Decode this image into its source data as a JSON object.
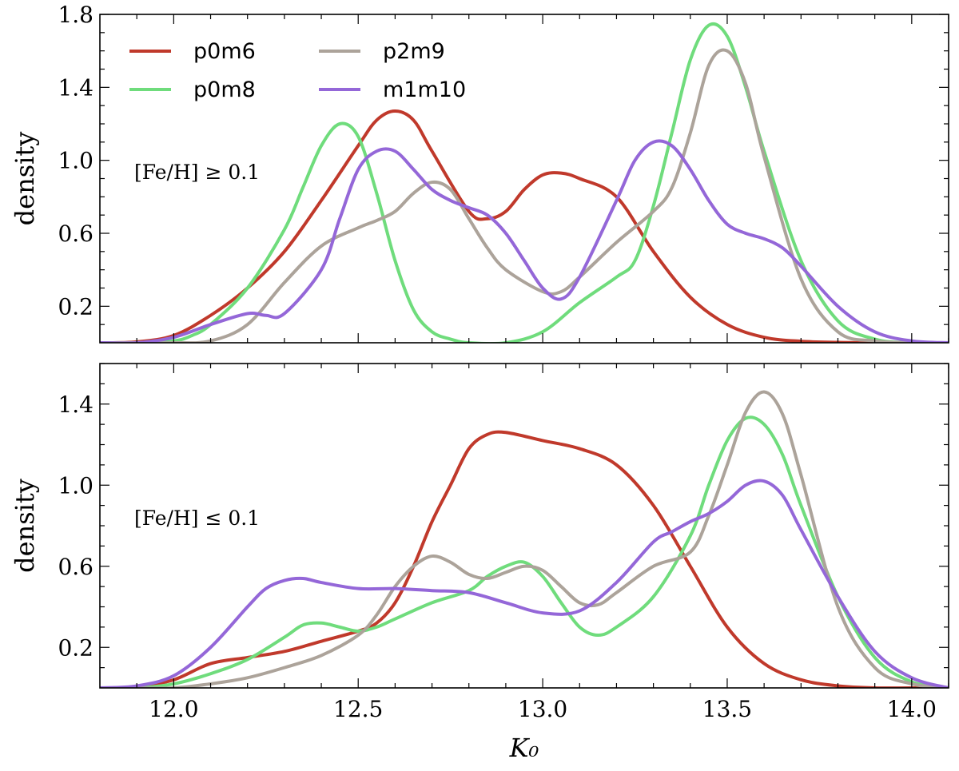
{
  "chart_data": [
    {
      "type": "line",
      "panel": "top",
      "annotation": "[Fe/H] ≥ 0.1",
      "ylabel": "density",
      "xlabel": "",
      "xlim": [
        11.8,
        14.1
      ],
      "ylim": [
        0.0,
        1.8
      ],
      "yticks": [
        0.2,
        0.6,
        1.0,
        1.4,
        1.8
      ],
      "ytick_labels": [
        "0.2",
        "0.6",
        "1.0",
        "1.4",
        "1.8"
      ],
      "xticks": [
        12.0,
        12.5,
        13.0,
        13.5,
        14.0
      ],
      "xtick_labels": [],
      "legend": {
        "placement": "top-left",
        "columns": 2
      },
      "series": [
        {
          "name": "p0m6",
          "color": "#c0392b",
          "x": [
            11.8,
            11.9,
            12.0,
            12.1,
            12.2,
            12.3,
            12.4,
            12.5,
            12.55,
            12.6,
            12.65,
            12.7,
            12.8,
            12.85,
            12.9,
            12.95,
            13.0,
            13.05,
            13.1,
            13.2,
            13.3,
            13.4,
            13.5,
            13.6,
            13.7,
            13.8,
            13.9,
            14.0,
            14.1
          ],
          "y": [
            0.0,
            0.005,
            0.04,
            0.15,
            0.3,
            0.5,
            0.78,
            1.08,
            1.22,
            1.27,
            1.22,
            1.05,
            0.72,
            0.68,
            0.72,
            0.84,
            0.92,
            0.93,
            0.9,
            0.8,
            0.5,
            0.25,
            0.1,
            0.03,
            0.008,
            0.002,
            0.0,
            0.0,
            0.0
          ]
        },
        {
          "name": "p0m8",
          "color": "#6fdc7c",
          "x": [
            11.8,
            11.9,
            12.0,
            12.05,
            12.1,
            12.2,
            12.3,
            12.35,
            12.4,
            12.45,
            12.5,
            12.55,
            12.6,
            12.65,
            12.7,
            12.75,
            12.8,
            12.9,
            13.0,
            13.1,
            13.2,
            13.25,
            13.3,
            13.35,
            13.4,
            13.45,
            13.5,
            13.55,
            13.6,
            13.7,
            13.8,
            13.9,
            14.0,
            14.1
          ],
          "y": [
            0.0,
            0.0,
            0.01,
            0.04,
            0.1,
            0.3,
            0.62,
            0.85,
            1.08,
            1.2,
            1.13,
            0.82,
            0.45,
            0.18,
            0.06,
            0.02,
            0.0,
            0.0,
            0.06,
            0.22,
            0.36,
            0.45,
            0.75,
            1.15,
            1.55,
            1.74,
            1.68,
            1.4,
            1.05,
            0.45,
            0.12,
            0.02,
            0.0,
            0.0
          ]
        },
        {
          "name": "p2m9",
          "color": "#aca39a",
          "x": [
            11.8,
            11.9,
            12.0,
            12.1,
            12.2,
            12.3,
            12.4,
            12.5,
            12.55,
            12.6,
            12.65,
            12.7,
            12.75,
            12.8,
            12.85,
            12.9,
            13.0,
            13.05,
            13.1,
            13.2,
            13.3,
            13.35,
            13.4,
            13.45,
            13.5,
            13.55,
            13.6,
            13.7,
            13.8,
            13.9,
            14.0,
            14.1
          ],
          "y": [
            0.0,
            0.0,
            0.0,
            0.01,
            0.1,
            0.33,
            0.53,
            0.63,
            0.67,
            0.72,
            0.82,
            0.88,
            0.84,
            0.68,
            0.52,
            0.4,
            0.28,
            0.28,
            0.36,
            0.55,
            0.72,
            0.85,
            1.15,
            1.52,
            1.6,
            1.42,
            1.02,
            0.35,
            0.06,
            0.01,
            0.0,
            0.0
          ]
        },
        {
          "name": "m1m10",
          "color": "#9467d8",
          "x": [
            11.8,
            11.9,
            12.0,
            12.1,
            12.2,
            12.25,
            12.3,
            12.4,
            12.45,
            12.5,
            12.55,
            12.6,
            12.65,
            12.7,
            12.75,
            12.8,
            12.85,
            12.9,
            12.95,
            13.0,
            13.05,
            13.1,
            13.2,
            13.25,
            13.3,
            13.35,
            13.4,
            13.45,
            13.5,
            13.55,
            13.6,
            13.65,
            13.7,
            13.8,
            13.9,
            14.0,
            14.1
          ],
          "y": [
            0.0,
            0.0,
            0.03,
            0.1,
            0.16,
            0.15,
            0.16,
            0.4,
            0.68,
            0.95,
            1.05,
            1.05,
            0.95,
            0.84,
            0.78,
            0.74,
            0.7,
            0.6,
            0.45,
            0.3,
            0.24,
            0.36,
            0.78,
            1.0,
            1.1,
            1.08,
            0.95,
            0.78,
            0.65,
            0.6,
            0.57,
            0.52,
            0.42,
            0.2,
            0.06,
            0.01,
            0.0
          ]
        }
      ]
    },
    {
      "type": "line",
      "panel": "bottom",
      "annotation": "[Fe/H] ≤ 0.1",
      "ylabel": "density",
      "xlabel": "K₀",
      "xlim": [
        11.8,
        14.1
      ],
      "ylim": [
        0.0,
        1.6
      ],
      "yticks": [
        0.2,
        0.6,
        1.0,
        1.4
      ],
      "ytick_labels": [
        "0.2",
        "0.6",
        "1.0",
        "1.4"
      ],
      "xticks": [
        12.0,
        12.5,
        13.0,
        13.5,
        14.0
      ],
      "xtick_labels": [
        "12.0",
        "12.5",
        "13.0",
        "13.5",
        "14.0"
      ],
      "series": [
        {
          "name": "p0m6",
          "color": "#c0392b",
          "x": [
            11.8,
            11.9,
            12.0,
            12.1,
            12.2,
            12.3,
            12.4,
            12.5,
            12.55,
            12.6,
            12.65,
            12.7,
            12.75,
            12.8,
            12.85,
            12.9,
            13.0,
            13.1,
            13.2,
            13.3,
            13.4,
            13.5,
            13.6,
            13.7,
            13.8,
            13.9,
            14.0,
            14.1
          ],
          "y": [
            0.0,
            0.005,
            0.04,
            0.12,
            0.15,
            0.18,
            0.23,
            0.28,
            0.32,
            0.42,
            0.6,
            0.82,
            1.0,
            1.18,
            1.25,
            1.26,
            1.22,
            1.18,
            1.1,
            0.9,
            0.6,
            0.3,
            0.12,
            0.04,
            0.01,
            0.0,
            0.0,
            0.0
          ]
        },
        {
          "name": "p0m8",
          "color": "#6fdc7c",
          "x": [
            11.8,
            11.9,
            12.0,
            12.1,
            12.2,
            12.3,
            12.35,
            12.4,
            12.45,
            12.5,
            12.55,
            12.6,
            12.7,
            12.8,
            12.85,
            12.9,
            12.95,
            13.0,
            13.05,
            13.1,
            13.15,
            13.2,
            13.3,
            13.4,
            13.45,
            13.5,
            13.55,
            13.6,
            13.65,
            13.7,
            13.8,
            13.9,
            14.0,
            14.1
          ],
          "y": [
            0.0,
            0.0,
            0.02,
            0.07,
            0.14,
            0.25,
            0.31,
            0.32,
            0.3,
            0.28,
            0.3,
            0.34,
            0.42,
            0.48,
            0.55,
            0.6,
            0.62,
            0.55,
            0.42,
            0.3,
            0.26,
            0.3,
            0.45,
            0.75,
            1.0,
            1.22,
            1.33,
            1.3,
            1.15,
            0.9,
            0.45,
            0.15,
            0.03,
            0.0
          ]
        },
        {
          "name": "p2m9",
          "color": "#aca39a",
          "x": [
            11.8,
            11.9,
            12.0,
            12.1,
            12.2,
            12.3,
            12.4,
            12.5,
            12.55,
            12.6,
            12.65,
            12.7,
            12.75,
            12.8,
            12.85,
            12.9,
            12.95,
            13.0,
            13.05,
            13.1,
            13.15,
            13.2,
            13.3,
            13.4,
            13.45,
            13.5,
            13.55,
            13.6,
            13.65,
            13.7,
            13.8,
            13.9,
            14.0,
            14.1
          ],
          "y": [
            0.0,
            0.0,
            0.0,
            0.02,
            0.05,
            0.1,
            0.16,
            0.26,
            0.36,
            0.5,
            0.6,
            0.65,
            0.62,
            0.56,
            0.54,
            0.57,
            0.6,
            0.58,
            0.5,
            0.42,
            0.41,
            0.47,
            0.6,
            0.67,
            0.85,
            1.1,
            1.36,
            1.46,
            1.35,
            1.05,
            0.4,
            0.1,
            0.02,
            0.0
          ]
        },
        {
          "name": "m1m10",
          "color": "#9467d8",
          "x": [
            11.8,
            11.9,
            12.0,
            12.1,
            12.2,
            12.25,
            12.3,
            12.35,
            12.4,
            12.5,
            12.6,
            12.7,
            12.8,
            12.9,
            13.0,
            13.1,
            13.2,
            13.3,
            13.35,
            13.4,
            13.45,
            13.5,
            13.55,
            13.6,
            13.65,
            13.7,
            13.8,
            13.9,
            14.0,
            14.1
          ],
          "y": [
            0.0,
            0.01,
            0.06,
            0.2,
            0.4,
            0.49,
            0.53,
            0.54,
            0.52,
            0.49,
            0.49,
            0.48,
            0.47,
            0.42,
            0.37,
            0.38,
            0.52,
            0.72,
            0.77,
            0.82,
            0.86,
            0.92,
            1.0,
            1.02,
            0.95,
            0.78,
            0.45,
            0.18,
            0.05,
            0.0
          ]
        }
      ]
    }
  ]
}
